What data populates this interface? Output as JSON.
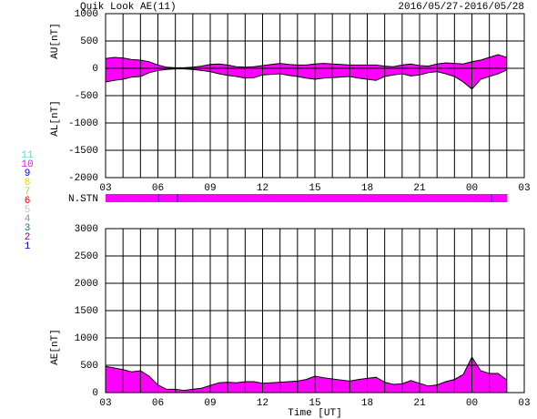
{
  "title": "Quik Look AE(11)",
  "date_range": "2016/05/27-2016/05/28",
  "station_label": "N.STN",
  "station_legend": [
    {
      "label": "11",
      "color": "#40e0e0"
    },
    {
      "label": "10",
      "color": "#ff00ff"
    },
    {
      "label": "9",
      "color": "#0000ff"
    },
    {
      "label": "8",
      "color": "#f0d000"
    },
    {
      "label": "7",
      "color": "#a0d040"
    },
    {
      "label": "6",
      "color": "#ff0000"
    },
    {
      "label": "5",
      "color": "#c0c0c0"
    },
    {
      "label": "4",
      "color": "#909090"
    },
    {
      "label": "3",
      "color": "#008080"
    },
    {
      "label": "2",
      "color": "#800080"
    },
    {
      "label": "1",
      "color": "#0000c0"
    }
  ],
  "chart_data": [
    {
      "type": "area",
      "fill": "#ff00ff",
      "x": [
        0,
        0.5,
        1,
        1.5,
        2,
        2.5,
        3,
        3.5,
        4,
        4.5,
        5,
        5.5,
        6,
        6.5,
        7,
        7.5,
        8,
        8.5,
        9,
        9.5,
        10,
        10.5,
        11,
        11.5,
        12,
        12.5,
        13,
        13.5,
        14,
        14.5,
        15,
        15.5,
        16,
        16.5,
        17,
        17.5,
        18,
        18.5,
        19,
        19.5,
        20,
        20.5,
        21,
        21.5,
        22,
        22.5,
        23
      ],
      "series": [
        {
          "name": "AU[nT]",
          "color": "#000000",
          "values": [
            180,
            200,
            190,
            160,
            150,
            120,
            60,
            20,
            10,
            10,
            20,
            40,
            70,
            80,
            60,
            30,
            20,
            30,
            50,
            70,
            90,
            70,
            60,
            60,
            80,
            90,
            80,
            70,
            60,
            60,
            60,
            60,
            40,
            30,
            60,
            80,
            50,
            40,
            80,
            100,
            90,
            80,
            120,
            150,
            200,
            250,
            200
          ]
        },
        {
          "name": "AL[nT]",
          "color": "#000000",
          "values": [
            -250,
            -220,
            -200,
            -160,
            -150,
            -80,
            -40,
            -20,
            -10,
            -10,
            -20,
            -40,
            -60,
            -100,
            -130,
            -150,
            -180,
            -170,
            -120,
            -110,
            -100,
            -130,
            -150,
            -180,
            -200,
            -180,
            -170,
            -160,
            -150,
            -180,
            -200,
            -220,
            -150,
            -120,
            -100,
            -140,
            -120,
            -80,
            -60,
            -100,
            -150,
            -250,
            -380,
            -200,
            -150,
            -100,
            -30
          ]
        }
      ],
      "xlim": [
        0,
        24
      ],
      "xticks": [
        {
          "value": 0,
          "label": "03"
        },
        {
          "value": 3,
          "label": "06"
        },
        {
          "value": 6,
          "label": "09"
        },
        {
          "value": 9,
          "label": "12"
        },
        {
          "value": 12,
          "label": "15"
        },
        {
          "value": 15,
          "label": "18"
        },
        {
          "value": 18,
          "label": "21"
        },
        {
          "value": 21,
          "label": "00"
        },
        {
          "value": 24,
          "label": "03"
        }
      ],
      "xminorticks": [
        1,
        2,
        4,
        5,
        7,
        8,
        10,
        11,
        13,
        14,
        16,
        17,
        19,
        20,
        22,
        23
      ],
      "ylim": [
        -2000,
        1000
      ],
      "yticks": [
        -2000,
        -1500,
        -1000,
        -500,
        0,
        500,
        1000
      ],
      "grid": true
    },
    {
      "type": "area",
      "fill": "#ff00ff",
      "xlabel": "Time [UT]",
      "x": [
        0,
        0.5,
        1,
        1.5,
        2,
        2.5,
        3,
        3.5,
        4,
        4.5,
        5,
        5.5,
        6,
        6.5,
        7,
        7.5,
        8,
        8.5,
        9,
        9.5,
        10,
        10.5,
        11,
        11.5,
        12,
        12.5,
        13,
        13.5,
        14,
        14.5,
        15,
        15.5,
        16,
        16.5,
        17,
        17.5,
        18,
        18.5,
        19,
        19.5,
        20,
        20.5,
        21,
        21.5,
        22,
        22.5,
        23
      ],
      "series": [
        {
          "name": "AE[nT]",
          "color": "#000000",
          "values": [
            480,
            450,
            420,
            380,
            400,
            300,
            140,
            60,
            60,
            40,
            60,
            80,
            130,
            180,
            190,
            180,
            200,
            200,
            170,
            180,
            190,
            200,
            210,
            240,
            300,
            270,
            250,
            230,
            210,
            240,
            260,
            280,
            190,
            150,
            160,
            220,
            170,
            120,
            140,
            200,
            240,
            330,
            650,
            400,
            350,
            350,
            230
          ]
        }
      ],
      "xlim": [
        0,
        24
      ],
      "xticks": [
        {
          "value": 0,
          "label": "03"
        },
        {
          "value": 3,
          "label": "06"
        },
        {
          "value": 6,
          "label": "09"
        },
        {
          "value": 9,
          "label": "12"
        },
        {
          "value": 12,
          "label": "15"
        },
        {
          "value": 15,
          "label": "18"
        },
        {
          "value": 18,
          "label": "21"
        },
        {
          "value": 21,
          "label": "00"
        },
        {
          "value": 24,
          "label": "03"
        }
      ],
      "xminorticks": [
        1,
        2,
        4,
        5,
        7,
        8,
        10,
        11,
        13,
        14,
        16,
        17,
        19,
        20,
        22,
        23
      ],
      "ylim": [
        0,
        3000
      ],
      "yticks": [
        0,
        500,
        1000,
        1500,
        2000,
        2500,
        3000
      ],
      "grid": true
    }
  ]
}
